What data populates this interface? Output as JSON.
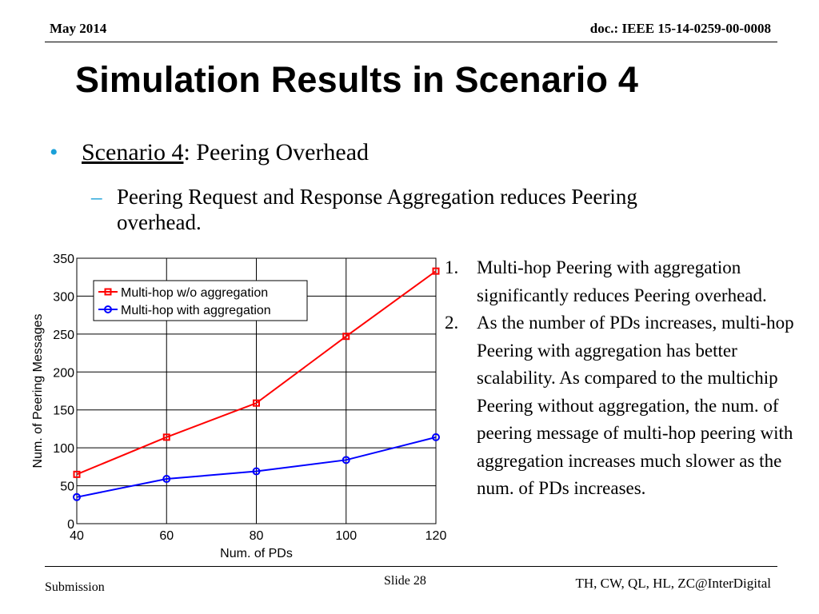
{
  "header": {
    "date": "May 2014",
    "doc": "doc.: IEEE 15-14-0259-00-0008"
  },
  "title": "Simulation Results in Scenario 4",
  "bullet": {
    "label": "Scenario 4",
    "rest": ": Peering Overhead"
  },
  "sub_bullet": {
    "dash": "–",
    "text": "Peering Request and Response Aggregation reduces Peering overhead."
  },
  "notes": [
    {
      "num": "1.",
      "text": "Multi-hop Peering with aggregation significantly reduces Peering overhead."
    },
    {
      "num": "2.",
      "text": "As the number of PDs increases, multi-hop Peering with aggregation has better scalability. As compared to the multichip Peering without aggregation, the num. of peering message of multi-hop peering with aggregation increases much slower as the num. of PDs increases."
    }
  ],
  "footer": {
    "left": "Submission",
    "slide": "Slide 28",
    "right": "TH, CW, QL, HL, ZC@InterDigital"
  },
  "chart_data": {
    "type": "line",
    "xlabel": "Num. of PDs",
    "ylabel": "Num. of Peering Messages",
    "xlim": [
      40,
      120
    ],
    "ylim": [
      0,
      350
    ],
    "xticks": [
      40,
      60,
      80,
      100,
      120
    ],
    "yticks": [
      0,
      50,
      100,
      150,
      200,
      250,
      300,
      350
    ],
    "grid": true,
    "legend_position": "top-left",
    "x": [
      40,
      60,
      80,
      100,
      120
    ],
    "series": [
      {
        "name": "Multi-hop w/o aggregation",
        "color": "#ff0000",
        "marker": "square",
        "values": [
          65,
          114,
          159,
          247,
          333
        ]
      },
      {
        "name": "Multi-hop with aggregation",
        "color": "#0000ff",
        "marker": "circle",
        "values": [
          35,
          59,
          69,
          84,
          114
        ]
      }
    ]
  }
}
